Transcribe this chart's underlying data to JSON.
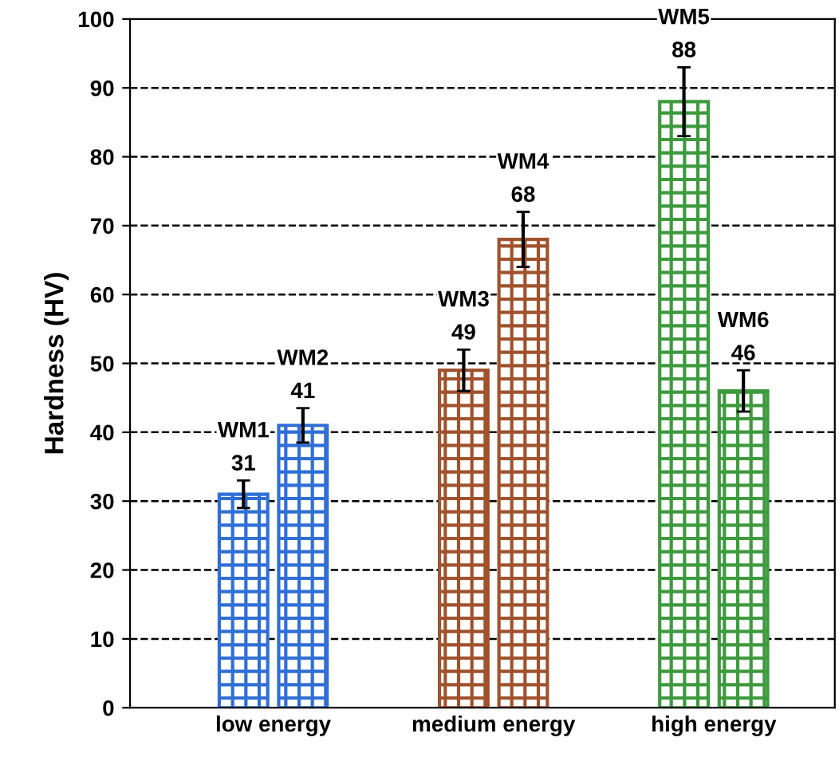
{
  "chart_data": {
    "type": "bar",
    "ylabel": "Hardness (HV)",
    "categories": [
      "low energy",
      "medium energy",
      "high energy"
    ],
    "series": [
      {
        "colors": [
          "#2f6fd6",
          "#a0522d",
          "#3d9a3d"
        ],
        "values": [
          31,
          49,
          88
        ],
        "errors": [
          2,
          3,
          5
        ]
      },
      {
        "colors": [
          "#2f6fd6",
          "#a0522d",
          "#3d9a3d"
        ],
        "values": [
          41,
          68,
          46
        ],
        "errors": [
          2.5,
          4,
          3
        ]
      }
    ],
    "annotations": [
      "WM1",
      "WM3",
      "WM5",
      "WM2",
      "WM4",
      "WM6"
    ],
    "data_labels": true,
    "ylim": [
      0,
      100
    ],
    "yticks": [
      0,
      10,
      20,
      30,
      40,
      50,
      60,
      70,
      80,
      90,
      100
    ],
    "grid": "y",
    "line_style": "dashed"
  }
}
